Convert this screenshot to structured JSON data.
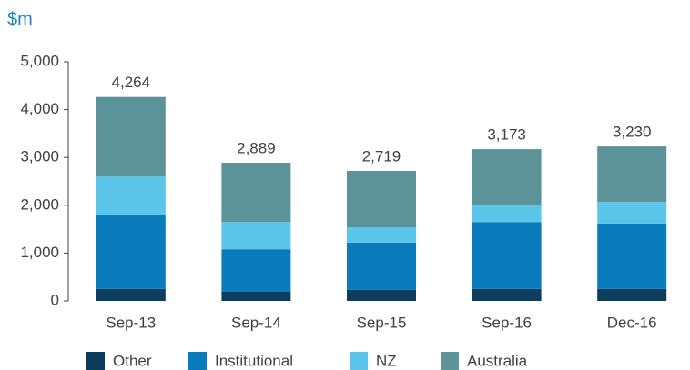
{
  "chart_data": {
    "type": "stacked_bar",
    "y_axis_label": "$m",
    "categories": [
      "Sep-13",
      "Sep-14",
      "Sep-15",
      "Sep-16",
      "Dec-16"
    ],
    "series": [
      {
        "name": "Other",
        "color": "#0b3d5c",
        "values": [
          250,
          190,
          230,
          250,
          250
        ]
      },
      {
        "name": "Institutional",
        "color": "#0a7bbd",
        "values": [
          1550,
          890,
          990,
          1400,
          1370
        ]
      },
      {
        "name": "NZ",
        "color": "#5bc6ea",
        "values": [
          800,
          570,
          320,
          350,
          450
        ]
      },
      {
        "name": "Australia",
        "color": "#5b9399",
        "values": [
          1664,
          1239,
          1179,
          1173,
          1160
        ]
      }
    ],
    "totals": [
      4264,
      2889,
      2719,
      3173,
      3230
    ],
    "total_labels": [
      "4,264",
      "2,889",
      "2,719",
      "3,173",
      "3,230"
    ],
    "ylim": [
      0,
      5000
    ],
    "yticks": [
      0,
      {
        "value": 1000,
        "label": "1,000"
      },
      {
        "value": 2000,
        "label": "2,000"
      },
      {
        "value": 3000,
        "label": "3,000"
      },
      {
        "value": 4000,
        "label": "4,000"
      },
      {
        "value": 5000,
        "label": "5,000"
      }
    ],
    "legend": "bottom"
  }
}
